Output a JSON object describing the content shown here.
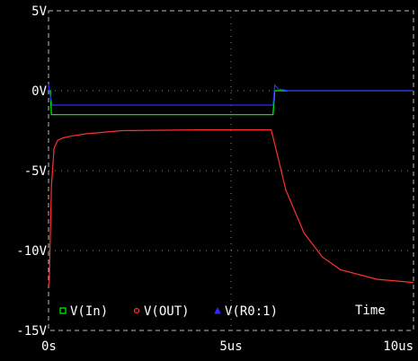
{
  "chart_data": {
    "type": "line",
    "xlabel": "Time",
    "x_ticks": [
      "0s",
      "5us",
      "10us"
    ],
    "y_ticks": [
      "5V",
      "0V",
      "-5V",
      "-10V",
      "-15V"
    ],
    "xlim": [
      0,
      10
    ],
    "ylim": [
      -15,
      5
    ],
    "x_unit": "us",
    "y_unit": "V",
    "grid": true,
    "legend": "bottom",
    "series": [
      {
        "name": "V(In)",
        "color": "#00ff00",
        "marker": "square",
        "x": [
          0,
          0.05,
          0.08,
          6.15,
          6.2,
          10
        ],
        "y": [
          0,
          0,
          -1.5,
          -1.5,
          0,
          0
        ]
      },
      {
        "name": "V(OUT)",
        "color": "#ff3030",
        "marker": "circle",
        "x": [
          0,
          0.02,
          0.08,
          0.15,
          0.25,
          0.4,
          0.6,
          1.0,
          2.0,
          4.0,
          6.1,
          6.3,
          6.5,
          7.0,
          7.5,
          8.0,
          9.0,
          10
        ],
        "y": [
          -12.2,
          -12.0,
          -6.0,
          -3.6,
          -3.1,
          -2.95,
          -2.85,
          -2.7,
          -2.5,
          -2.45,
          -2.45,
          -4.3,
          -6.2,
          -8.9,
          -10.4,
          -11.2,
          -11.8,
          -12.0
        ]
      },
      {
        "name": "V(R0:1)",
        "color": "#2a2aff",
        "marker": "triangle",
        "x": [
          0,
          0.02,
          0.1,
          6.15,
          6.2,
          6.3,
          6.6,
          10
        ],
        "y": [
          0.4,
          0,
          -0.9,
          -0.9,
          0.35,
          0.1,
          0,
          0
        ]
      }
    ]
  }
}
